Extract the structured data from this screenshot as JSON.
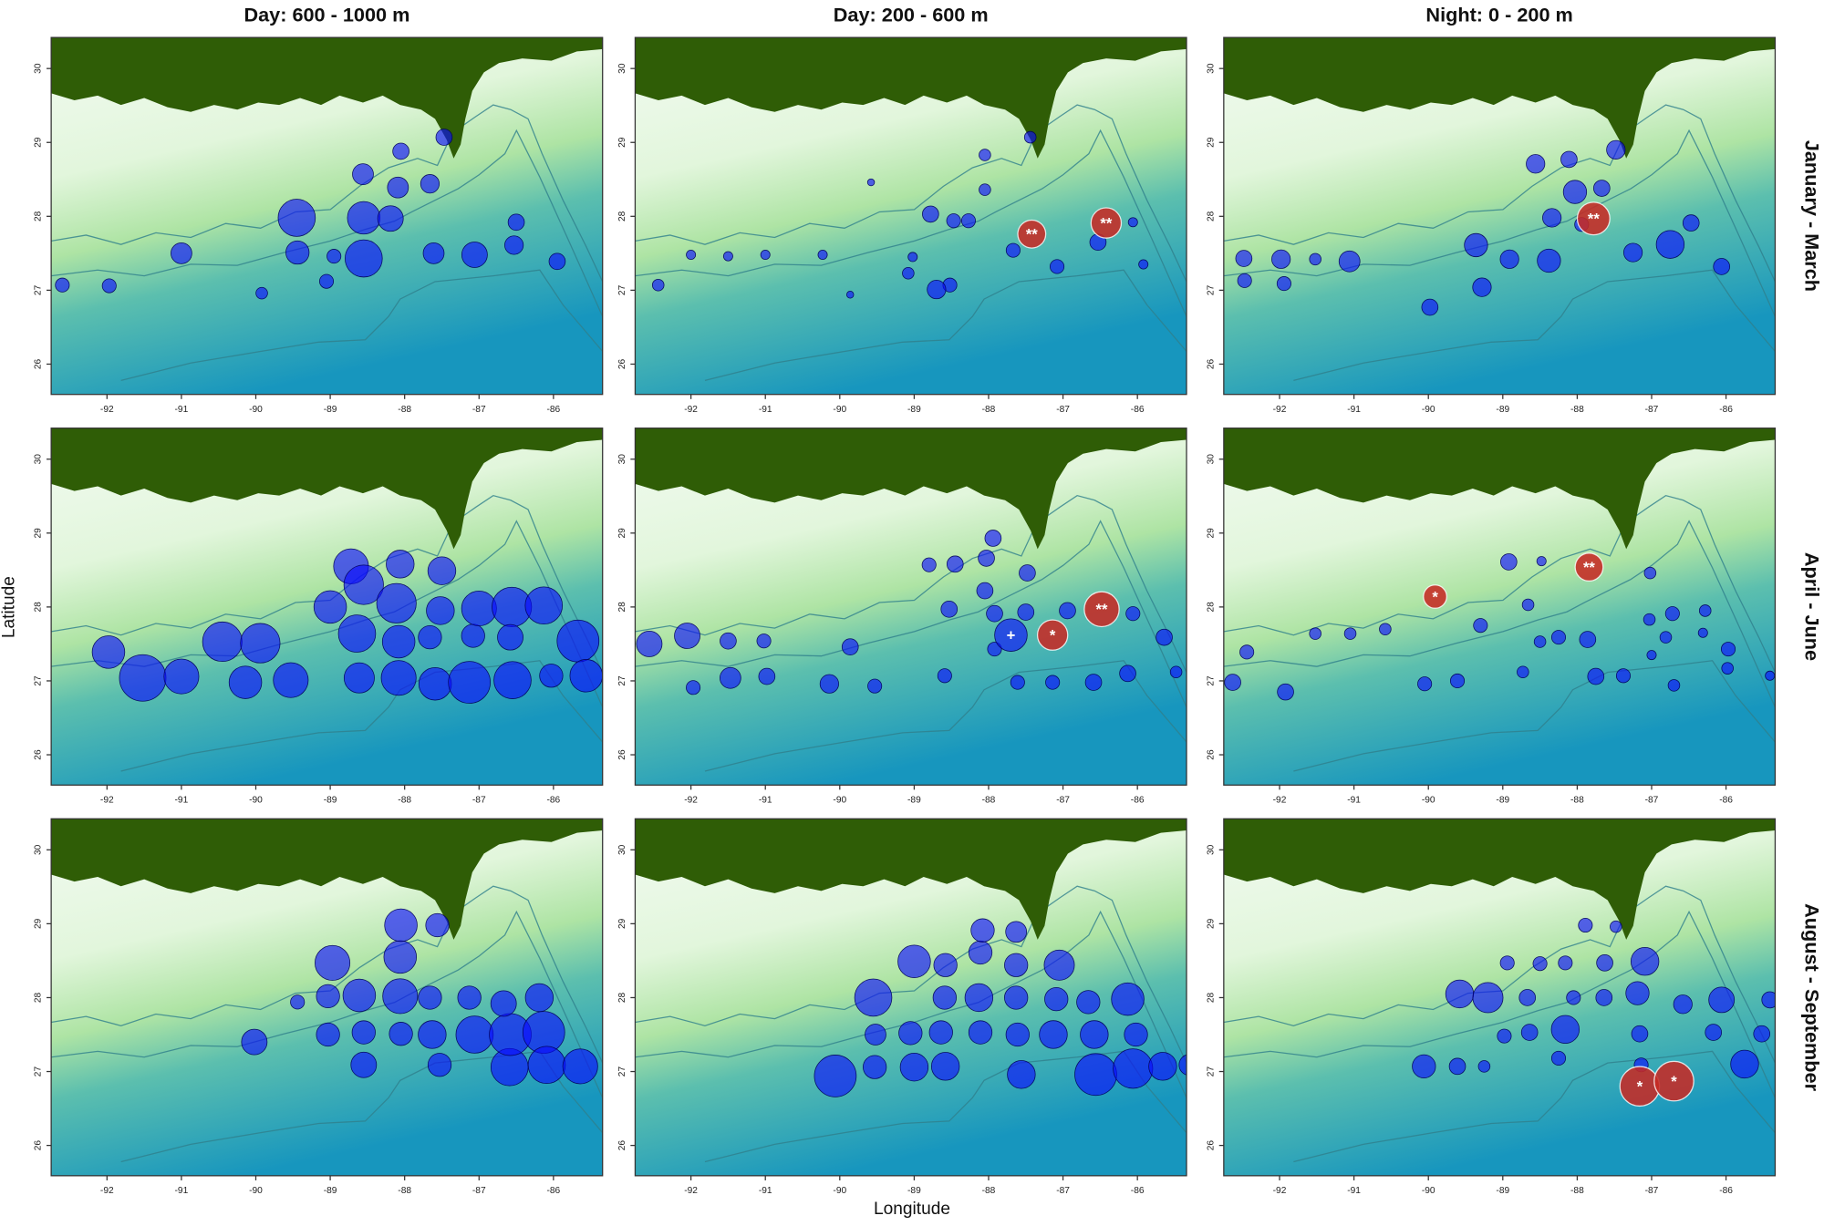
{
  "column_titles": [
    "Day: 600 - 1000 m",
    "Day: 200 - 600 m",
    "Night: 0 - 200 m"
  ],
  "row_titles": [
    "January - March",
    "April - June",
    "August - September"
  ],
  "x_label": "Longitude",
  "y_label": "Latitude",
  "chart_data": [
    {
      "type": "bubble",
      "xlim": [
        -92.75,
        -85.34
      ],
      "ylim": [
        25.59,
        30.42
      ],
      "xticks": [
        -92,
        -91,
        -90,
        -89,
        -88,
        -87,
        -86
      ],
      "yticks": [
        26,
        27,
        28,
        29,
        30
      ],
      "series": [
        {
          "color": "#0a0aff",
          "x": [
            -92.6,
            -91.97,
            -91.0,
            -89.92,
            -89.44,
            -89.45,
            -88.95,
            -89.05,
            -88.55,
            -88.55,
            -88.19,
            -88.09,
            -88.56,
            -88.05,
            -87.66,
            -87.47,
            -87.61,
            -87.06,
            -86.53,
            -86.5,
            -85.95
          ],
          "y": [
            27.07,
            27.06,
            27.5,
            26.96,
            27.51,
            27.98,
            27.46,
            27.12,
            27.98,
            27.43,
            27.97,
            28.39,
            28.57,
            28.88,
            28.44,
            29.07,
            27.5,
            27.48,
            27.61,
            27.92,
            27.39
          ],
          "sizes": [
            6,
            6,
            9,
            5,
            10,
            16,
            6,
            6,
            14,
            16,
            11,
            9,
            9,
            7,
            8,
            7,
            9,
            11,
            8,
            7,
            7
          ]
        }
      ]
    },
    {
      "type": "bubble",
      "xlim": [
        -92.75,
        -85.34
      ],
      "ylim": [
        25.59,
        30.42
      ],
      "xticks": [
        -92,
        -91,
        -90,
        -89,
        -88,
        -87,
        -86
      ],
      "yticks": [
        26,
        27,
        28,
        29,
        30
      ],
      "series": [
        {
          "color": "#0a0aff",
          "x": [
            -92.44,
            -92.0,
            -91.5,
            -91.0,
            -89.86,
            -90.23,
            -89.58,
            -89.02,
            -88.78,
            -89.08,
            -88.52,
            -88.7,
            -88.47,
            -88.27,
            -88.05,
            -88.05,
            -87.67,
            -87.44,
            -87.08,
            -86.53,
            -86.06,
            -85.92
          ],
          "y": [
            27.07,
            27.48,
            27.46,
            27.48,
            26.94,
            27.48,
            28.46,
            27.45,
            28.03,
            27.23,
            27.07,
            27.01,
            27.94,
            27.94,
            28.83,
            28.36,
            27.54,
            29.07,
            27.32,
            27.65,
            27.92,
            27.35
          ],
          "sizes": [
            5,
            4,
            4,
            4,
            3,
            4,
            3,
            4,
            7,
            5,
            6,
            8,
            6,
            6,
            5,
            5,
            6,
            5,
            6,
            7,
            4,
            4
          ]
        },
        {
          "color": "#c62a24",
          "x": [
            -87.42,
            -86.42
          ],
          "y": [
            27.76,
            27.91
          ],
          "sizes": [
            12,
            13
          ],
          "labels": [
            "**",
            "**"
          ]
        }
      ]
    },
    {
      "type": "bubble",
      "xlim": [
        -92.75,
        -85.34
      ],
      "ylim": [
        25.59,
        30.42
      ],
      "xticks": [
        -92,
        -91,
        -90,
        -89,
        -88,
        -87,
        -86
      ],
      "yticks": [
        26,
        27,
        28,
        29,
        30
      ],
      "series": [
        {
          "color": "#0a0aff",
          "x": [
            -92.48,
            -92.47,
            -91.98,
            -91.94,
            -91.52,
            -91.06,
            -89.98,
            -89.36,
            -89.28,
            -88.91,
            -88.56,
            -88.38,
            -88.34,
            -88.11,
            -88.03,
            -87.67,
            -87.48,
            -87.94,
            -87.25,
            -86.75,
            -86.47,
            -86.06
          ],
          "y": [
            27.43,
            27.13,
            27.42,
            27.09,
            27.42,
            27.39,
            26.77,
            27.61,
            27.04,
            27.42,
            28.71,
            27.4,
            27.98,
            28.77,
            28.33,
            28.38,
            28.9,
            27.89,
            27.51,
            27.62,
            27.91,
            27.32
          ],
          "sizes": [
            7,
            6,
            8,
            6,
            5,
            9,
            7,
            10,
            8,
            8,
            8,
            10,
            8,
            7,
            10,
            7,
            8,
            6,
            8,
            12,
            7,
            7
          ]
        },
        {
          "color": "#c62a24",
          "x": [
            -87.78
          ],
          "y": [
            27.97
          ],
          "sizes": [
            14
          ],
          "labels": [
            "**"
          ]
        }
      ]
    },
    {
      "type": "bubble",
      "xlim": [
        -92.75,
        -85.34
      ],
      "ylim": [
        25.59,
        30.42
      ],
      "xticks": [
        -92,
        -91,
        -90,
        -89,
        -88,
        -87,
        -86
      ],
      "yticks": [
        26,
        27,
        28,
        29,
        30
      ],
      "series": [
        {
          "color": "#0a0aff",
          "x": [
            -91.98,
            -91.52,
            -91.0,
            -90.45,
            -89.94,
            -90.14,
            -89.53,
            -88.72,
            -88.55,
            -88.06,
            -87.5,
            -89.0,
            -88.64,
            -88.11,
            -88.08,
            -87.52,
            -87.66,
            -87.08,
            -87.0,
            -86.56,
            -86.13,
            -86.58,
            -85.67,
            -88.61,
            -88.08,
            -87.59,
            -87.13,
            -86.55,
            -86.03,
            -85.56
          ],
          "y": [
            27.39,
            27.04,
            27.06,
            27.53,
            27.51,
            26.98,
            27.01,
            28.55,
            28.3,
            28.58,
            28.49,
            28.0,
            27.64,
            28.05,
            27.53,
            27.95,
            27.59,
            27.61,
            27.98,
            28.0,
            28.02,
            27.59,
            27.54,
            27.04,
            27.04,
            26.96,
            26.98,
            27.01,
            27.07,
            27.07
          ],
          "sizes": [
            14,
            20,
            15,
            17,
            17,
            14,
            15,
            15,
            17,
            12,
            12,
            14,
            16,
            17,
            14,
            12,
            10,
            10,
            15,
            17,
            16,
            11,
            18,
            13,
            15,
            14,
            18,
            16,
            10,
            14
          ]
        }
      ]
    },
    {
      "type": "bubble",
      "xlim": [
        -92.75,
        -85.34
      ],
      "ylim": [
        25.59,
        30.42
      ],
      "xticks": [
        -92,
        -91,
        -90,
        -89,
        -88,
        -87,
        -86
      ],
      "yticks": [
        26,
        27,
        28,
        29,
        30
      ],
      "series": [
        {
          "color": "#0a0aff",
          "x": [
            -92.56,
            -92.05,
            -91.5,
            -91.02,
            -91.47,
            -91.97,
            -90.98,
            -90.14,
            -89.53,
            -89.86,
            -88.8,
            -88.45,
            -88.53,
            -88.03,
            -87.94,
            -88.05,
            -87.48,
            -87.92,
            -87.5,
            -87.92,
            -86.94,
            -86.06,
            -85.64,
            -85.48,
            -88.59,
            -87.61,
            -87.14,
            -86.59,
            -86.13
          ],
          "y": [
            27.5,
            27.61,
            27.54,
            27.54,
            27.04,
            26.91,
            27.06,
            26.96,
            26.93,
            27.46,
            28.57,
            28.58,
            27.97,
            28.66,
            28.93,
            28.22,
            28.46,
            27.91,
            27.93,
            27.43,
            27.95,
            27.91,
            27.59,
            27.12,
            27.07,
            26.98,
            26.98,
            26.98,
            27.1
          ],
          "sizes": [
            11,
            11,
            7,
            6,
            9,
            6,
            7,
            8,
            6,
            7,
            6,
            7,
            7,
            7,
            7,
            7,
            7,
            7,
            7,
            6,
            7,
            6,
            7,
            5,
            6,
            6,
            6,
            7,
            7
          ]
        },
        {
          "color": "#0a0aff",
          "x": [
            -87.7
          ],
          "y": [
            27.62
          ],
          "sizes": [
            14
          ],
          "labels": [
            "+"
          ]
        },
        {
          "color": "#c62a24",
          "x": [
            -87.14,
            -86.48
          ],
          "y": [
            27.62,
            27.97
          ],
          "sizes": [
            13,
            15
          ],
          "labels": [
            "*",
            "**"
          ]
        }
      ]
    },
    {
      "type": "bubble",
      "xlim": [
        -92.75,
        -85.34
      ],
      "ylim": [
        25.59,
        30.42
      ],
      "xticks": [
        -92,
        -91,
        -90,
        -89,
        -88,
        -87,
        -86
      ],
      "yticks": [
        26,
        27,
        28,
        29,
        30
      ],
      "series": [
        {
          "color": "#0a0aff",
          "x": [
            -92.63,
            -92.44,
            -91.92,
            -91.52,
            -91.05,
            -90.58,
            -90.05,
            -89.61,
            -89.3,
            -88.92,
            -88.48,
            -87.02,
            -88.66,
            -88.5,
            -88.25,
            -87.86,
            -87.75,
            -87.38,
            -87.03,
            -86.72,
            -86.28,
            -86.81,
            -86.31,
            -86.7,
            -85.97,
            -85.98,
            -85.41,
            -88.73,
            -87.0
          ],
          "y": [
            26.98,
            27.39,
            26.85,
            27.64,
            27.64,
            27.7,
            26.96,
            27.0,
            27.75,
            28.61,
            28.62,
            28.46,
            28.03,
            27.53,
            27.59,
            27.56,
            27.06,
            27.07,
            27.83,
            27.91,
            27.95,
            27.59,
            27.65,
            26.94,
            27.43,
            27.17,
            27.07,
            27.12,
            27.35
          ],
          "sizes": [
            7,
            6,
            7,
            5,
            5,
            5,
            6,
            6,
            6,
            7,
            4,
            5,
            5,
            5,
            6,
            7,
            7,
            6,
            5,
            6,
            5,
            5,
            4,
            5,
            6,
            5,
            4,
            5,
            4
          ]
        },
        {
          "color": "#c62a24",
          "x": [
            -89.91,
            -87.84
          ],
          "y": [
            28.14,
            28.54
          ],
          "sizes": [
            10,
            12
          ],
          "labels": [
            "*",
            "**"
          ]
        }
      ]
    },
    {
      "type": "bubble",
      "xlim": [
        -92.75,
        -85.34
      ],
      "ylim": [
        25.59,
        30.42
      ],
      "xticks": [
        -92,
        -91,
        -90,
        -89,
        -88,
        -87,
        -86
      ],
      "yticks": [
        26,
        27,
        28,
        29,
        30
      ],
      "series": [
        {
          "color": "#0a0aff",
          "x": [
            -90.02,
            -89.44,
            -89.03,
            -89.03,
            -88.97,
            -88.61,
            -88.55,
            -88.55,
            -88.06,
            -88.05,
            -88.06,
            -88.05,
            -87.56,
            -87.66,
            -87.63,
            -87.53,
            -87.13,
            -87.06,
            -86.59,
            -86.58,
            -86.13,
            -86.09,
            -86.19,
            -86.67,
            -85.64
          ],
          "y": [
            27.4,
            27.94,
            28.02,
            27.5,
            28.47,
            28.03,
            27.53,
            27.09,
            28.02,
            27.51,
            28.55,
            28.98,
            28.98,
            28.0,
            27.5,
            27.09,
            28.0,
            27.5,
            27.06,
            27.5,
            27.53,
            27.09,
            28.0,
            27.92,
            27.07
          ],
          "sizes": [
            11,
            6,
            10,
            10,
            15,
            14,
            10,
            11,
            15,
            10,
            14,
            14,
            10,
            10,
            12,
            10,
            10,
            16,
            16,
            18,
            18,
            16,
            12,
            11,
            15
          ]
        }
      ]
    },
    {
      "type": "bubble",
      "xlim": [
        -92.75,
        -85.34
      ],
      "ylim": [
        25.59,
        30.42
      ],
      "xticks": [
        -92,
        -91,
        -90,
        -89,
        -88,
        -87,
        -86
      ],
      "yticks": [
        26,
        27,
        28,
        29,
        30
      ],
      "series": [
        {
          "color": "#0a0aff",
          "x": [
            -90.06,
            -89.52,
            -89.53,
            -89.05,
            -89.0,
            -88.58,
            -88.64,
            -88.59,
            -89.0,
            -88.58,
            -88.13,
            -88.11,
            -88.11,
            -88.08,
            -87.63,
            -87.63,
            -87.63,
            -87.61,
            -87.56,
            -87.05,
            -87.13,
            -87.09,
            -86.56,
            -86.06,
            -86.58,
            -86.66,
            -86.13,
            -86.02,
            -85.66,
            -85.3,
            -89.55
          ],
          "y": [
            26.94,
            27.5,
            27.06,
            27.52,
            27.06,
            27.07,
            27.53,
            28.0,
            28.49,
            28.44,
            28.0,
            27.53,
            28.61,
            28.91,
            28.89,
            28.44,
            28.0,
            27.5,
            26.96,
            28.44,
            27.5,
            27.98,
            26.96,
            27.04,
            27.5,
            27.94,
            27.98,
            27.5,
            27.07,
            27.09,
            28.0
          ],
          "sizes": [
            18,
            9,
            10,
            10,
            12,
            12,
            10,
            10,
            14,
            10,
            12,
            10,
            10,
            10,
            9,
            10,
            10,
            10,
            12,
            13,
            12,
            10,
            18,
            17,
            12,
            10,
            14,
            10,
            12,
            9,
            16
          ]
        }
      ]
    },
    {
      "type": "bubble",
      "xlim": [
        -92.75,
        -85.34
      ],
      "ylim": [
        25.59,
        30.42
      ],
      "xticks": [
        -92,
        -91,
        -90,
        -89,
        -88,
        -87,
        -86
      ],
      "yticks": [
        26,
        27,
        28,
        29,
        30
      ],
      "series": [
        {
          "color": "#0a0aff",
          "x": [
            -90.06,
            -89.61,
            -89.25,
            -89.58,
            -89.2,
            -88.94,
            -88.67,
            -88.64,
            -88.98,
            -88.25,
            -88.16,
            -88.5,
            -88.16,
            -88.05,
            -87.89,
            -87.64,
            -87.63,
            -87.48,
            -87.09,
            -87.19,
            -87.16,
            -87.14,
            -86.58,
            -86.06,
            -86.17,
            -85.75,
            -85.52,
            -85.41
          ],
          "y": [
            27.07,
            27.07,
            27.07,
            28.05,
            28.0,
            28.47,
            28.0,
            27.53,
            27.48,
            27.18,
            27.57,
            28.46,
            28.47,
            28.0,
            28.98,
            28.0,
            28.47,
            28.96,
            28.49,
            28.06,
            27.51,
            27.09,
            27.91,
            27.97,
            27.53,
            27.1,
            27.51,
            27.97
          ],
          "sizes": [
            10,
            7,
            5,
            12,
            13,
            6,
            7,
            7,
            6,
            6,
            12,
            6,
            6,
            6,
            6,
            7,
            7,
            5,
            12,
            10,
            7,
            6,
            8,
            11,
            7,
            12,
            7,
            7
          ]
        },
        {
          "color": "#c62a24",
          "x": [
            -87.16,
            -86.7
          ],
          "y": [
            26.8,
            26.87
          ],
          "sizes": [
            17,
            17
          ],
          "labels": [
            "*",
            "*"
          ]
        }
      ]
    }
  ]
}
